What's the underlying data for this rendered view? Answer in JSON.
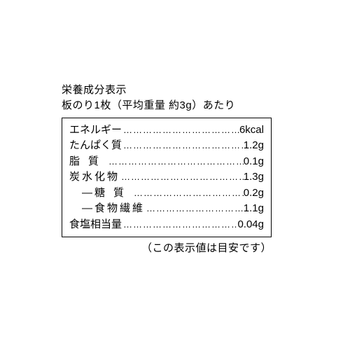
{
  "header": {
    "title": "栄養成分表示",
    "subtitle": "板のり1枚（平均重量 約3g）あたり"
  },
  "rows": [
    {
      "label": "エネルギー",
      "value": "6kcal",
      "sub": false,
      "spread": ""
    },
    {
      "label": "たんぱく質",
      "value": "1.2g",
      "sub": false,
      "spread": ""
    },
    {
      "label": "脂質",
      "value": "0.1g",
      "sub": false,
      "spread": "spread2",
      "padend": true
    },
    {
      "label": "炭水化物",
      "value": "1.3g",
      "sub": false,
      "spread": "spread4"
    },
    {
      "label": "糖質",
      "value": "0.2g",
      "sub": true,
      "spread": "spread2",
      "padend": true
    },
    {
      "label": "食物繊維",
      "value": "1.1g",
      "sub": true,
      "spread": "spread4"
    },
    {
      "label": "食塩相当量",
      "value": "0.04g",
      "sub": false,
      "spread": ""
    }
  ],
  "footer": "（この表示値は目安です）",
  "colors": {
    "text": "#000000",
    "background": "#ffffff",
    "border": "#000000"
  },
  "dots": "…………………………………………"
}
